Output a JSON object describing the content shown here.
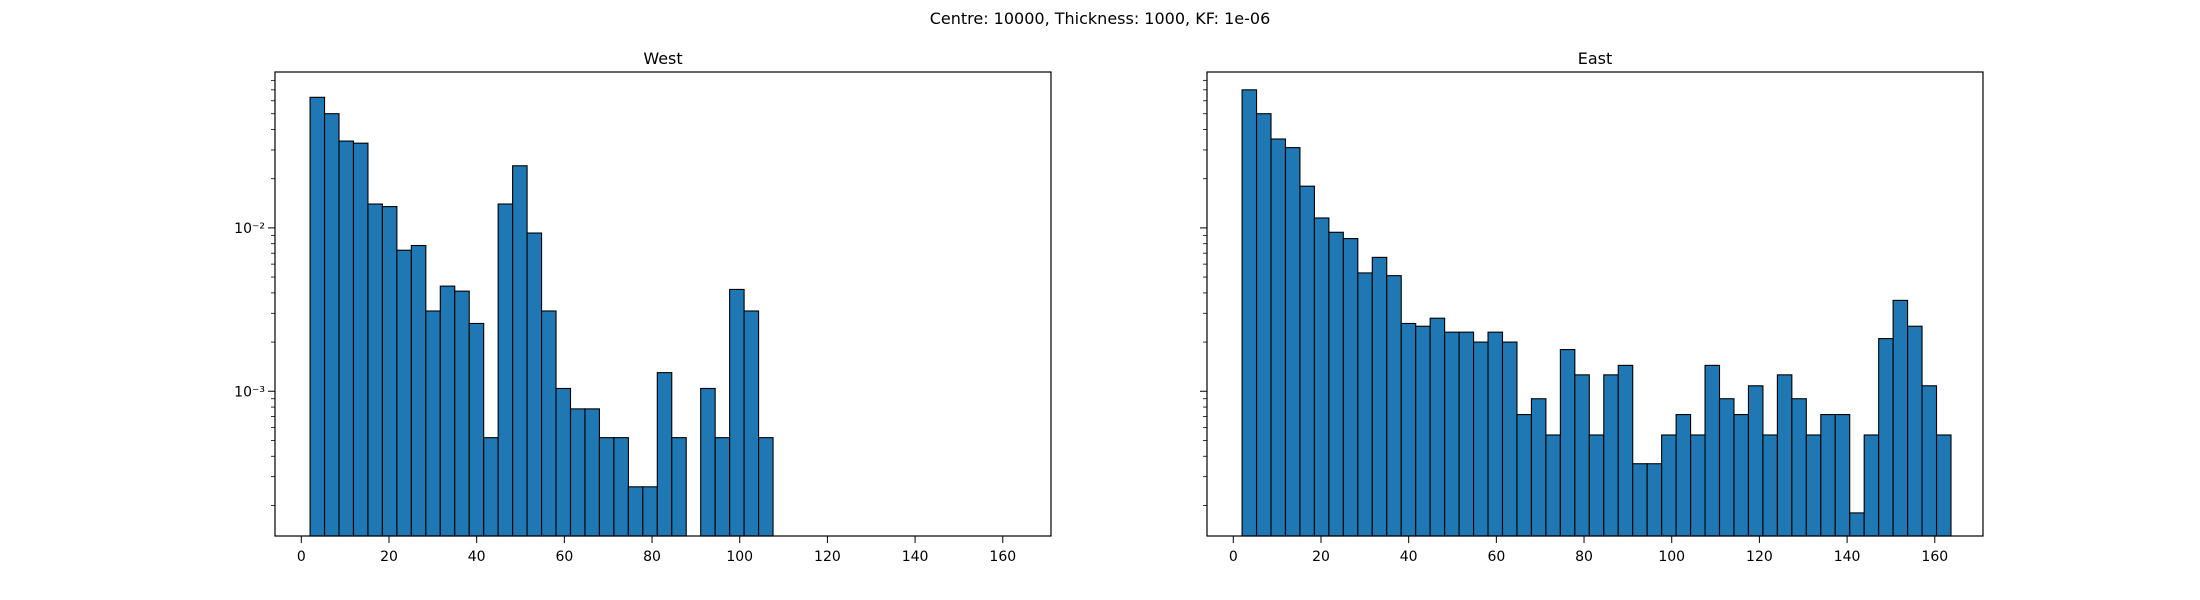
{
  "suptitle": "Centre: 10000, Thickness: 1000, KF: 1e-06",
  "chart_data": [
    {
      "type": "bar",
      "title": "West",
      "xlim": [
        -6,
        171
      ],
      "ylim": [
        0.00013,
        0.09
      ],
      "yscale": "log",
      "bin_width": 3.3,
      "x_ticks": [
        0,
        20,
        40,
        60,
        80,
        100,
        120,
        140,
        160
      ],
      "x_tick_labels": [
        "0",
        "20",
        "40",
        "60",
        "80",
        "100",
        "120",
        "140",
        "160"
      ],
      "y_ticks": [
        0.01,
        0.001
      ],
      "y_tick_labels": [
        "10⁻²",
        "10⁻³"
      ],
      "bar_color": "#1f77b4",
      "edge_color": "#000000",
      "bins": [
        {
          "x": 2.0,
          "value": 0.063
        },
        {
          "x": 5.3,
          "value": 0.05
        },
        {
          "x": 8.6,
          "value": 0.034
        },
        {
          "x": 11.9,
          "value": 0.033
        },
        {
          "x": 15.2,
          "value": 0.014
        },
        {
          "x": 18.5,
          "value": 0.0135
        },
        {
          "x": 21.8,
          "value": 0.0073
        },
        {
          "x": 25.1,
          "value": 0.0078
        },
        {
          "x": 28.4,
          "value": 0.0031
        },
        {
          "x": 31.7,
          "value": 0.0044
        },
        {
          "x": 35.0,
          "value": 0.0041
        },
        {
          "x": 38.3,
          "value": 0.0026
        },
        {
          "x": 41.6,
          "value": 0.00052
        },
        {
          "x": 44.9,
          "value": 0.014
        },
        {
          "x": 48.2,
          "value": 0.024
        },
        {
          "x": 51.5,
          "value": 0.0093
        },
        {
          "x": 54.8,
          "value": 0.0031
        },
        {
          "x": 58.1,
          "value": 0.00104
        },
        {
          "x": 61.4,
          "value": 0.00078
        },
        {
          "x": 64.7,
          "value": 0.00078
        },
        {
          "x": 68.0,
          "value": 0.00052
        },
        {
          "x": 71.3,
          "value": 0.00052
        },
        {
          "x": 74.6,
          "value": 0.00026
        },
        {
          "x": 77.9,
          "value": 0.00026
        },
        {
          "x": 81.2,
          "value": 0.0013
        },
        {
          "x": 84.5,
          "value": 0.00052
        },
        {
          "x": 91.1,
          "value": 0.00104
        },
        {
          "x": 94.4,
          "value": 0.00052
        },
        {
          "x": 97.7,
          "value": 0.0042
        },
        {
          "x": 101.0,
          "value": 0.0031
        },
        {
          "x": 104.3,
          "value": 0.00052
        }
      ]
    },
    {
      "type": "bar",
      "title": "East",
      "xlim": [
        -6,
        171
      ],
      "ylim": [
        0.00013,
        0.09
      ],
      "yscale": "log",
      "bin_width": 3.3,
      "x_ticks": [
        0,
        20,
        40,
        60,
        80,
        100,
        120,
        140,
        160
      ],
      "x_tick_labels": [
        "0",
        "20",
        "40",
        "60",
        "80",
        "100",
        "120",
        "140",
        "160"
      ],
      "y_ticks": [
        0.01,
        0.001
      ],
      "y_tick_labels": [
        "",
        ""
      ],
      "bar_color": "#1f77b4",
      "edge_color": "#000000",
      "bins": [
        {
          "x": 2.0,
          "value": 0.07
        },
        {
          "x": 5.3,
          "value": 0.05
        },
        {
          "x": 8.6,
          "value": 0.035
        },
        {
          "x": 11.9,
          "value": 0.031
        },
        {
          "x": 15.2,
          "value": 0.018
        },
        {
          "x": 18.5,
          "value": 0.0115
        },
        {
          "x": 21.8,
          "value": 0.0094
        },
        {
          "x": 25.1,
          "value": 0.0086
        },
        {
          "x": 28.4,
          "value": 0.0053
        },
        {
          "x": 31.7,
          "value": 0.0066
        },
        {
          "x": 35.0,
          "value": 0.0051
        },
        {
          "x": 38.3,
          "value": 0.0026
        },
        {
          "x": 41.6,
          "value": 0.0025
        },
        {
          "x": 44.9,
          "value": 0.0028
        },
        {
          "x": 48.2,
          "value": 0.0023
        },
        {
          "x": 51.5,
          "value": 0.0023
        },
        {
          "x": 54.8,
          "value": 0.002
        },
        {
          "x": 58.1,
          "value": 0.0023
        },
        {
          "x": 61.4,
          "value": 0.002
        },
        {
          "x": 64.7,
          "value": 0.00072
        },
        {
          "x": 68.0,
          "value": 0.0009
        },
        {
          "x": 71.3,
          "value": 0.00054
        },
        {
          "x": 74.6,
          "value": 0.0018
        },
        {
          "x": 77.9,
          "value": 0.00126
        },
        {
          "x": 81.2,
          "value": 0.00054
        },
        {
          "x": 84.5,
          "value": 0.00126
        },
        {
          "x": 87.8,
          "value": 0.00144
        },
        {
          "x": 91.1,
          "value": 0.00036
        },
        {
          "x": 94.4,
          "value": 0.00036
        },
        {
          "x": 97.7,
          "value": 0.00054
        },
        {
          "x": 101.0,
          "value": 0.00072
        },
        {
          "x": 104.3,
          "value": 0.00054
        },
        {
          "x": 107.6,
          "value": 0.00144
        },
        {
          "x": 110.9,
          "value": 0.0009
        },
        {
          "x": 114.2,
          "value": 0.00072
        },
        {
          "x": 117.5,
          "value": 0.00108
        },
        {
          "x": 120.8,
          "value": 0.00054
        },
        {
          "x": 124.1,
          "value": 0.00126
        },
        {
          "x": 127.4,
          "value": 0.0009
        },
        {
          "x": 130.7,
          "value": 0.00054
        },
        {
          "x": 134.0,
          "value": 0.00072
        },
        {
          "x": 137.3,
          "value": 0.00072
        },
        {
          "x": 140.6,
          "value": 0.00018
        },
        {
          "x": 143.9,
          "value": 0.00054
        },
        {
          "x": 147.2,
          "value": 0.0021
        },
        {
          "x": 150.5,
          "value": 0.0036
        },
        {
          "x": 153.8,
          "value": 0.0025
        },
        {
          "x": 157.1,
          "value": 0.00108
        },
        {
          "x": 160.4,
          "value": 0.00054
        }
      ]
    }
  ]
}
